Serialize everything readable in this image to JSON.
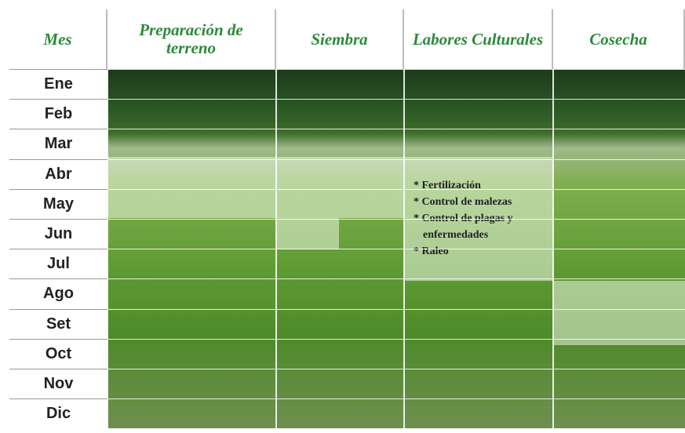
{
  "header": {
    "columns": [
      "Mes",
      "Preparación de terreno",
      "Siembra",
      "Labores Culturales",
      "Cosecha"
    ]
  },
  "rows": [
    "Ene",
    "Feb",
    "Mar",
    "Abr",
    "May",
    "Jun",
    "Jul",
    "Ago",
    "Set",
    "Oct",
    "Nov",
    "Dic"
  ],
  "notes": [
    "* Fertilización",
    "* Control de malezas",
    "* Control de plagas y",
    "enfermedades",
    "* Raleo"
  ]
}
